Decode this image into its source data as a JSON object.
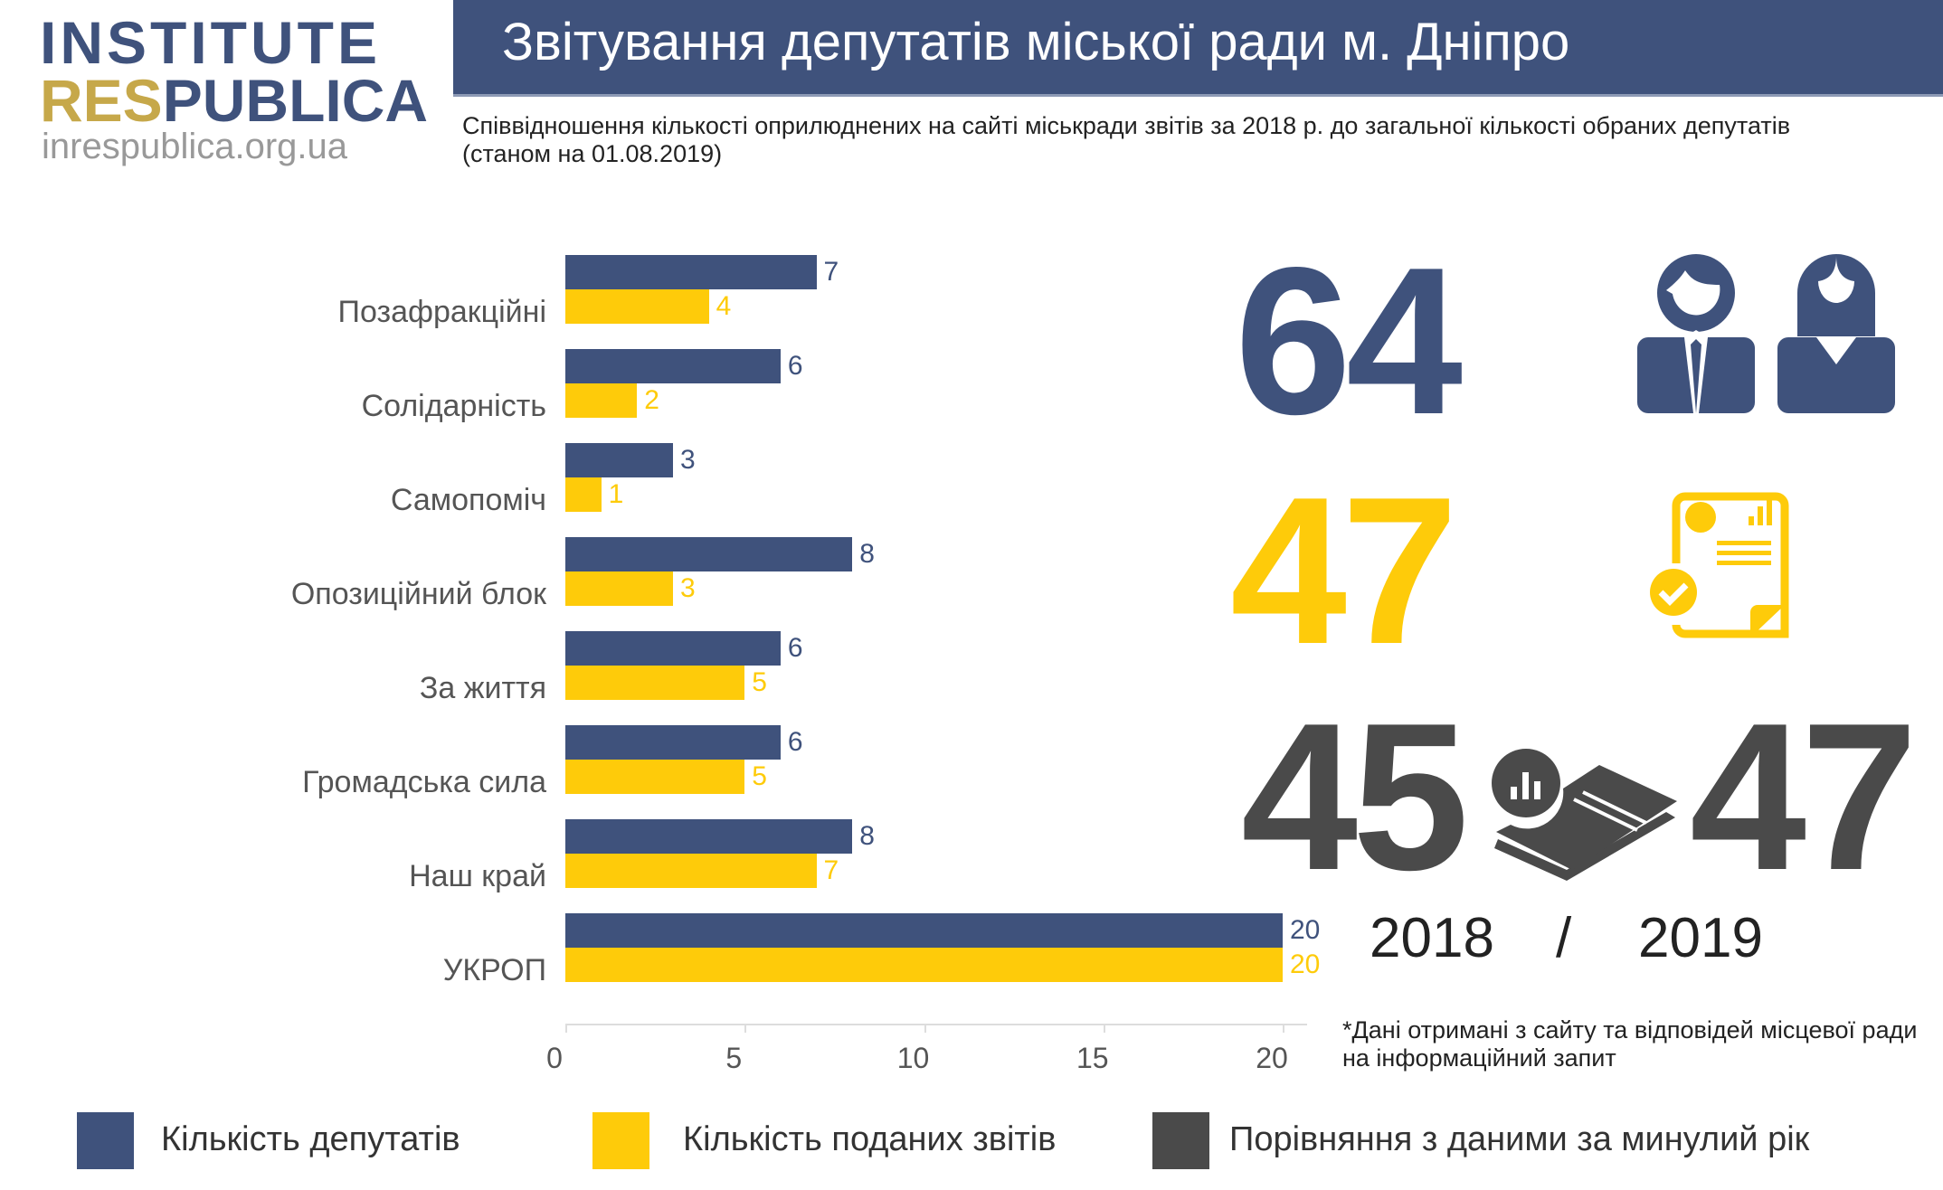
{
  "logo": {
    "line1": "INSTITUTE",
    "line2_accent": "RES",
    "line2_rest": "PUBLICA",
    "url": "inrespublica.org.ua"
  },
  "header": {
    "title": "Звітування депутатів міської ради м. Дніпро"
  },
  "subtitle": "Співвідношення кількості оприлюднених на сайті міськради звітів за 2018 р. до загальної кількості обраних депутатів (станом на 01.08.2019)",
  "colors": {
    "deputies": "#3f527c",
    "reports": "#fecb0a",
    "comparison": "#4a4a4a",
    "logo_gold": "#c6a84a"
  },
  "chart_data": {
    "type": "bar",
    "orientation": "horizontal",
    "categories": [
      "Позафракційні",
      "Солідарність",
      "Самопоміч",
      "Опозиційний блок",
      "За життя",
      "Громадська сила",
      "Наш край",
      "УКРОП"
    ],
    "series": [
      {
        "name": "Кількість депутатів",
        "values": [
          7,
          6,
          3,
          8,
          6,
          6,
          8,
          20
        ]
      },
      {
        "name": "Кількість поданих звітів",
        "values": [
          4,
          2,
          1,
          3,
          5,
          5,
          7,
          20
        ]
      }
    ],
    "xlim": [
      0,
      20
    ],
    "xticks": [
      "0",
      "5",
      "10",
      "15",
      "20"
    ],
    "grid": false,
    "legend": "bottom"
  },
  "stats": {
    "total_deputies": "64",
    "reports": "47",
    "prev_year": "45",
    "this_year": "47",
    "year_prev": "2018",
    "separator": "/",
    "year_curr": "2019"
  },
  "icons": {
    "people": "deputies-icon",
    "report": "report-document-icon",
    "compare": "newspaper-chart-icon"
  },
  "footnote": "*Дані отримані з сайту та відповідей місцевої ради на інформаційний запит",
  "legend": [
    "Кількість депутатів",
    "Кількість поданих звітів",
    "Порівняння з даними за минулий рік"
  ]
}
